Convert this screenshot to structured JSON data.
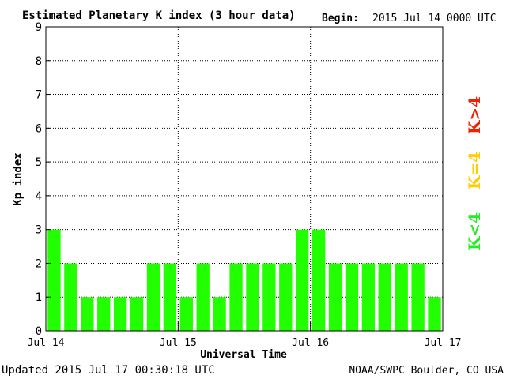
{
  "chart_data": {
    "type": "bar",
    "title": "Estimated Planetary K index (3 hour data)",
    "begin_label": "Begin:",
    "begin_value": "2015 Jul 14 0000 UTC",
    "xlabel": "Universal Time",
    "ylabel": "Kp index",
    "ylim": [
      0,
      9
    ],
    "yticks": [
      "0",
      "1",
      "2",
      "3",
      "4",
      "5",
      "6",
      "7",
      "8",
      "9"
    ],
    "xticks": [
      "Jul 14",
      "Jul 15",
      "Jul 16",
      "Jul 17"
    ],
    "values": [
      3,
      2,
      1,
      1,
      1,
      1,
      2,
      2,
      1,
      2,
      1,
      2,
      2,
      2,
      2,
      3,
      3,
      2,
      2,
      2,
      2,
      2,
      2,
      1
    ],
    "bar_color": "#22ff00",
    "grid": "dotted",
    "legend": [
      {
        "label": "K<4",
        "color": "#22ee22"
      },
      {
        "label": "K=4",
        "color": "#ffcc00"
      },
      {
        "label": "K>4",
        "color": "#ee2200"
      }
    ]
  },
  "footer": {
    "updated": "Updated 2015 Jul 17 00:30:18 UTC",
    "source": "NOAA/SWPC Boulder, CO USA"
  }
}
